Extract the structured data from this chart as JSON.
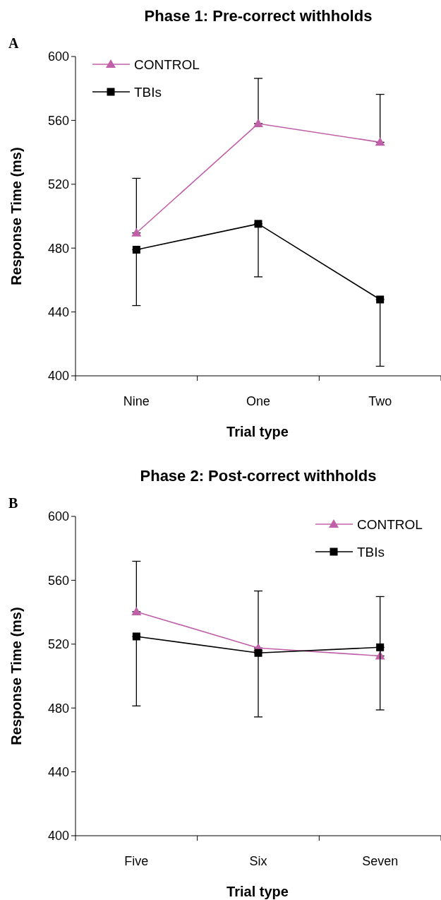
{
  "chart_data": [
    {
      "type": "line",
      "title": "Phase 1: Pre-correct withholds",
      "annotations": [
        "A"
      ],
      "categories": [
        "Nine",
        "One",
        "Two"
      ],
      "xlabel": "Trial type",
      "ylabel": "Response Time (ms)",
      "ylim": [
        400,
        600
      ],
      "yticks": [
        400,
        440,
        480,
        520,
        560,
        600
      ],
      "legend": "top left",
      "grid": false,
      "series": [
        {
          "name": "CONTROL",
          "color": "#c060a8",
          "marker": "triangle",
          "values": [
            489.5,
            558,
            546.3
          ],
          "errors": [
            [
              489.5,
              523.7
            ],
            [
              558,
              586.3
            ],
            [
              546.3,
              576.3
            ]
          ]
        },
        {
          "name": "TBIs",
          "color": "#000000",
          "marker": "square",
          "values": [
            479,
            495.2,
            447.8
          ],
          "errors": [
            [
              444,
              479
            ],
            [
              462,
              495.2
            ],
            [
              406,
              447.8
            ]
          ]
        }
      ]
    },
    {
      "type": "line",
      "title": "Phase 2: Post-correct withholds",
      "annotations": [
        "B"
      ],
      "categories": [
        "Five",
        "Six",
        "Seven"
      ],
      "xlabel": "Trial type",
      "ylabel": "Response Time (ms)",
      "ylim": [
        400,
        600
      ],
      "yticks": [
        400,
        440,
        480,
        520,
        560,
        600
      ],
      "legend": "top right",
      "grid": false,
      "series": [
        {
          "name": "CONTROL",
          "color": "#c060a8",
          "marker": "triangle",
          "values": [
            540.3,
            517.6,
            512.6
          ],
          "errors": [
            [
              540.3,
              571.9
            ],
            [
              517.6,
              553.3
            ],
            [
              512.6,
              549.8
            ]
          ]
        },
        {
          "name": "TBIs",
          "color": "#000000",
          "marker": "square",
          "values": [
            524.8,
            514.5,
            518
          ],
          "errors": [
            [
              481.3,
              524.8
            ],
            [
              474.4,
              514.5
            ],
            [
              478.8,
              518
            ]
          ]
        }
      ]
    }
  ]
}
